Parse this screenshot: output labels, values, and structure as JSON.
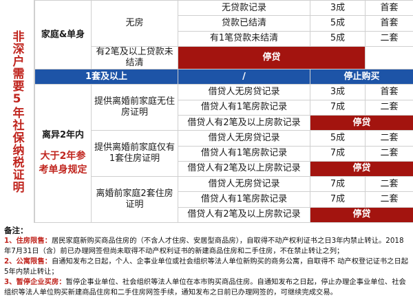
{
  "side_label": "非深户需要5年社保纳税证明",
  "table": {
    "group1": {
      "label": "家庭&单身",
      "sub": "无房",
      "rows": [
        {
          "cond": "无贷款记录",
          "down": "3成",
          "type": "首套"
        },
        {
          "cond": "贷款已结清",
          "down": "5成",
          "type": "首套"
        },
        {
          "cond": "有1笔贷款未结清",
          "down": "5成",
          "type": "二套"
        },
        {
          "cond": "有2笔及以上贷款未结清",
          "result": "停贷"
        }
      ]
    },
    "banner": {
      "a": "1套及以上",
      "b": "/",
      "c": "停止购买"
    },
    "group2": {
      "label": "离异2年内",
      "note": "大于2年参考单身规定",
      "subs": [
        {
          "sub": "提供离婚前家庭无住房证明",
          "rows": [
            {
              "cond": "借贷人无房贷记录",
              "down": "3成",
              "type": "首套"
            },
            {
              "cond": "借贷人有1笔房款记录",
              "down": "7成",
              "type": "二套"
            },
            {
              "cond": "借贷人有2笔及以上房款记录",
              "result": "停贷"
            }
          ]
        },
        {
          "sub": "提供离婚前家庭仅有1套住房证明",
          "rows": [
            {
              "cond": "借贷人无房贷记录",
              "down": "5成",
              "type": "二套"
            },
            {
              "cond": "借贷人有1笔房款记录",
              "down": "7成",
              "type": "二套"
            },
            {
              "cond": "借贷人有2笔及以上房款记录",
              "result": "停贷"
            }
          ]
        },
        {
          "sub": "离婚前家庭2套住房证明",
          "rows": [
            {
              "cond": "借贷人无房贷记录",
              "down": "7成",
              "type": "二套"
            },
            {
              "cond": "借贷人有1笔房款记录",
              "down": "7成",
              "type": "二套"
            },
            {
              "cond": "借贷人有2笔及以上房款记录",
              "result": "停贷"
            }
          ]
        }
      ]
    }
  },
  "notes": {
    "title": "备注：",
    "items": [
      {
        "label": "1、住房限售：",
        "text": "居民家庭新购买商品住房的（不含人才住房、安居型商品房），自取得不动产权利证书之日3年内禁止转让。2018年7月31日（含）前已办理网签但尚未取得不动产权利证书的新建商品住房和二手住房，不在禁止转让之列；"
      },
      {
        "label": "2、公寓限售：",
        "text": "自通知发布之日起，个人、企事业单位或社会组织等法人单位新购买的商务公寓，自取得不 动产权登记证书之日起5年内禁止转让；"
      },
      {
        "label": "3、暂停企业买房：",
        "text": "暂停企事业单位、社会组织等法人单位在本市购买商品住房。自通知发布之日起，停止办理企事业单位、社会组织等法人单位购买新建商品住房和二手住房网签手续，通知发布之日前已办理网签的，可继续完成交易。"
      }
    ]
  }
}
